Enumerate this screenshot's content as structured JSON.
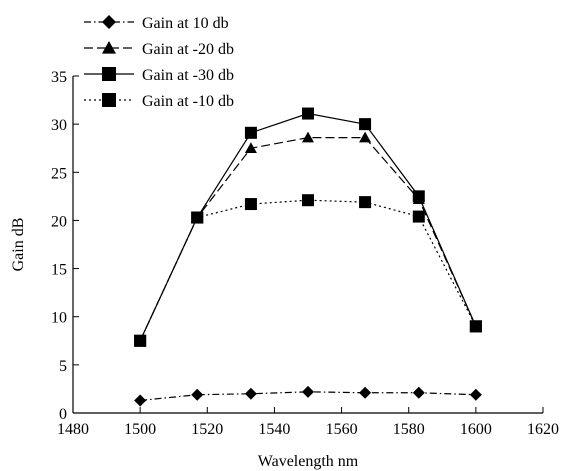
{
  "chart_data": {
    "type": "line",
    "title": "",
    "xlabel": "Wavelength nm",
    "ylabel": "Gain dB",
    "xlim": [
      1480,
      1620
    ],
    "ylim": [
      0,
      35
    ],
    "xticks": [
      1480,
      1500,
      1520,
      1540,
      1560,
      1580,
      1600,
      1620
    ],
    "yticks": [
      0,
      5,
      10,
      15,
      20,
      25,
      30,
      35
    ],
    "grid": false,
    "legend_position": "top-left",
    "x": [
      1500,
      1517,
      1533,
      1550,
      1567,
      1583,
      1600
    ],
    "series": [
      {
        "name": "Gain at 10 db",
        "marker": "diamond",
        "line": "dash-dot",
        "values": [
          1.3,
          1.9,
          2.0,
          2.2,
          2.1,
          2.1,
          1.9
        ]
      },
      {
        "name": "Gain at -20 db",
        "marker": "triangle",
        "line": "dashed",
        "values": [
          7.5,
          20.3,
          27.5,
          28.6,
          28.6,
          22.2,
          9.0
        ]
      },
      {
        "name": "Gain at -30 db",
        "marker": "square",
        "line": "solid",
        "values": [
          7.5,
          20.3,
          29.1,
          31.1,
          30.0,
          22.5,
          9.0
        ]
      },
      {
        "name": "Gain at -10 db",
        "marker": "square",
        "line": "dotted",
        "values": [
          7.5,
          20.3,
          21.7,
          22.1,
          21.9,
          20.4,
          9.0
        ]
      }
    ]
  }
}
